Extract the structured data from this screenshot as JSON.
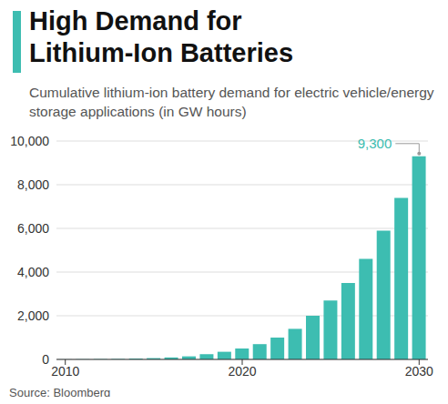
{
  "chart_data": {
    "type": "bar",
    "title": "High Demand for Lithium-Ion Batteries",
    "subtitle": "Cumulative lithium-ion battery demand for electric vehicle/energy storage applications (in GW hours)",
    "source": "Source: Bloomberg",
    "x": [
      2010,
      2011,
      2012,
      2013,
      2014,
      2015,
      2016,
      2017,
      2018,
      2019,
      2020,
      2021,
      2022,
      2023,
      2024,
      2025,
      2026,
      2027,
      2028,
      2029,
      2030
    ],
    "values": [
      5,
      10,
      15,
      20,
      40,
      60,
      90,
      140,
      240,
      350,
      500,
      700,
      1000,
      1400,
      2000,
      2700,
      3500,
      4600,
      5900,
      7400,
      9300
    ],
    "color": "#3dbdb1",
    "xlim": [
      2009.5,
      2030.5
    ],
    "xticks": [
      2010,
      2020,
      2030
    ],
    "ylim": [
      0,
      10000
    ],
    "yticks": [
      0,
      {
        "value": 2000,
        "label": "2,000"
      },
      {
        "value": 4000,
        "label": "4,000"
      },
      {
        "value": 6000,
        "label": "6,000"
      },
      {
        "value": 8000,
        "label": "8,000"
      },
      {
        "value": 10000,
        "label": "10,000"
      }
    ],
    "grid": true,
    "annotations": [
      {
        "x": 2030,
        "y": 9300,
        "label": "9,300"
      }
    ]
  }
}
